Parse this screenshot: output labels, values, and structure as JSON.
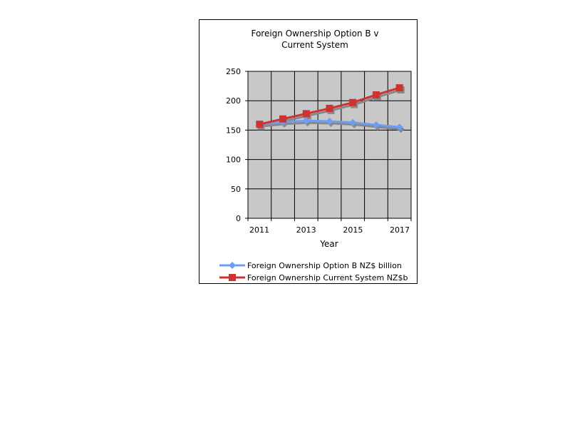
{
  "chart_data": {
    "type": "line",
    "title_lines": [
      "Foreign Ownership Option B v",
      "Current System"
    ],
    "xlabel": "Year",
    "ylabel": "",
    "x": [
      2011,
      2012,
      2013,
      2014,
      2015,
      2016,
      2017
    ],
    "x_tick_labels": [
      "2011",
      "2013",
      "2015",
      "2017"
    ],
    "y_tick_labels": [
      "0",
      "50",
      "100",
      "150",
      "200",
      "250"
    ],
    "ylim": [
      0,
      250
    ],
    "grid": true,
    "legend_position": "bottom",
    "series": [
      {
        "name": "Foreign Ownership Option B NZ$ billion",
        "values": [
          160,
          164,
          166,
          165,
          163,
          159,
          155
        ],
        "color": "#6f9ef0",
        "marker": "diamond"
      },
      {
        "name": "Foreign Ownership Current System NZ$b",
        "values": [
          160,
          169,
          178,
          187,
          197,
          210,
          222
        ],
        "color": "#cc3333",
        "marker": "square"
      }
    ],
    "plot_background": "#c8c8c8",
    "shadow_color": "#888888"
  }
}
